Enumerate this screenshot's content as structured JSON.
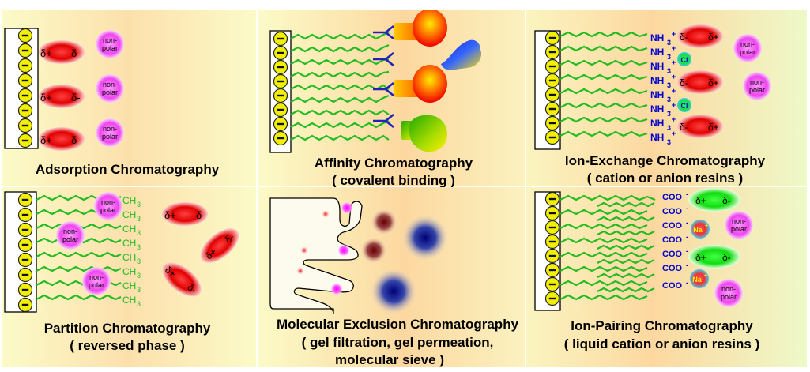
{
  "panels": {
    "adsorption": {
      "title": "Adsorption Chromatography"
    },
    "affinity": {
      "title": "Affinity Chromatography",
      "subtitle": "( covalent binding )"
    },
    "ion_exchange": {
      "title": "Ion-Exchange Chromatography",
      "subtitle": "( cation or anion resins )"
    },
    "partition": {
      "title": "Partition Chromatography",
      "subtitle": "( reversed phase )"
    },
    "exclusion": {
      "title": "Molecular Exclusion Chromatography",
      "subtitle": "( gel filtration, gel permeation,",
      "subtitle2": "molecular sieve )"
    },
    "ion_pairing": {
      "title": "Ion-Pairing Chromatography",
      "subtitle": "( liquid cation or anion resins )"
    }
  },
  "labels": {
    "surface_charge": "-",
    "delta_plus": "δ+",
    "delta_minus": "δ-",
    "nonpolar_1": "non-",
    "nonpolar_2": "polar",
    "nh3": "NH",
    "nh3_sub": "3",
    "nh3_sup": "+",
    "cl": "Cl",
    "ch3": "CH",
    "ch3_sub": "3",
    "coo": "COO",
    "coo_sup": "-",
    "na": "Na",
    "na_sup": "+"
  },
  "colors": {
    "background_gradient": [
      "#fbfbc8",
      "#fcd8a0",
      "#e8f7c0"
    ],
    "bead": "#f2f000",
    "chain": "#22bb22",
    "red_molecule": "#ee1111",
    "green_molecule": "#22ee22",
    "nonpolar": "#f055f0",
    "label_blue": "#0000cc",
    "ch3_green": "#22bb22"
  }
}
